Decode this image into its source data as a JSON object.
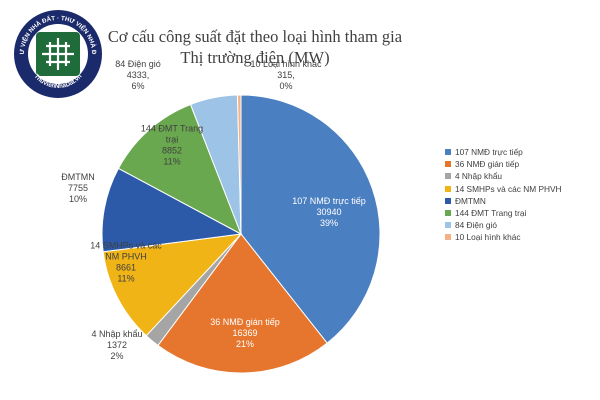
{
  "watermark": {
    "ring_top_text": "THƯ VIỆN NHÀ ĐẤT · THƯ VIỆN NHÀ ĐẤT",
    "ring_bottom_text": "ThuVienNhaDat.vn",
    "ring_color": "#1f6b3a",
    "ring_bg": "#1b2a6b"
  },
  "chart_data": {
    "type": "pie",
    "title": "Cơ cấu công suất đặt theo loại hình tham gia Thị trường điện (MW)",
    "title_lines": [
      "Cơ cấu công suất đặt theo loại hình tham gia",
      "Thị trường điện (MW)"
    ],
    "unit": "MW",
    "slices": [
      {
        "name": "107 NMĐ trực tiếp",
        "value": 30940,
        "percent": "39%",
        "color": "#4a7fc1",
        "label_lines": [
          "107 NMĐ trực tiếp",
          "30940",
          "39%"
        ],
        "label_color": "#ffffff"
      },
      {
        "name": "36 NMĐ gián tiếp",
        "value": 16369,
        "percent": "21%",
        "color": "#e6762e",
        "label_lines": [
          "36 NMĐ gián tiếp",
          "16369",
          "21%"
        ],
        "label_color": "#ffffff"
      },
      {
        "name": "4 Nhập khẩu",
        "value": 1372,
        "percent": "2%",
        "color": "#a5a5a5",
        "label_lines": [
          "4 Nhập khẩu",
          "1372",
          "2%"
        ],
        "label_color": "#404040"
      },
      {
        "name": "14 SMHPs và các NM PHVH",
        "value": 8661,
        "percent": "11%",
        "color": "#f1b417",
        "label_lines": [
          "14 SMHPs và các",
          "NM PHVH",
          "8661",
          "11%"
        ],
        "label_color": "#404040"
      },
      {
        "name": "ĐMTMN",
        "value": 7755,
        "percent": "10%",
        "color": "#2c5aa8",
        "label_lines": [
          "ĐMTMN",
          "7755",
          "10%"
        ],
        "label_color": "#404040"
      },
      {
        "name": "144 ĐMT Trang trại",
        "value": 8852,
        "percent": "11%",
        "color": "#6aa84f",
        "label_lines": [
          "144 ĐMT Trang",
          "trại",
          "8852",
          "11%"
        ],
        "label_color": "#404040"
      },
      {
        "name": "84 Điện gió",
        "value": 4333,
        "percent": "6%",
        "color": "#9dc3e6",
        "label_lines": [
          "84 Điện gió",
          "4333,",
          "6%"
        ],
        "label_color": "#404040"
      },
      {
        "name": "10 Loại hình khác",
        "value": 315,
        "percent": "0%",
        "color": "#f4b183",
        "label_lines": [
          "10 Loại hình khác",
          "315,",
          "0%"
        ],
        "label_color": "#404040"
      }
    ],
    "legend": [
      "107 NMĐ trực tiếp",
      "36 NMĐ gián tiếp",
      "4 Nhập khẩu",
      "14 SMHPs và các NM PHVH",
      "ĐMTMN",
      "144 ĐMT Trang trại",
      "84 Điện gió",
      "10 Loại hình khác"
    ],
    "legend_position": "right"
  }
}
